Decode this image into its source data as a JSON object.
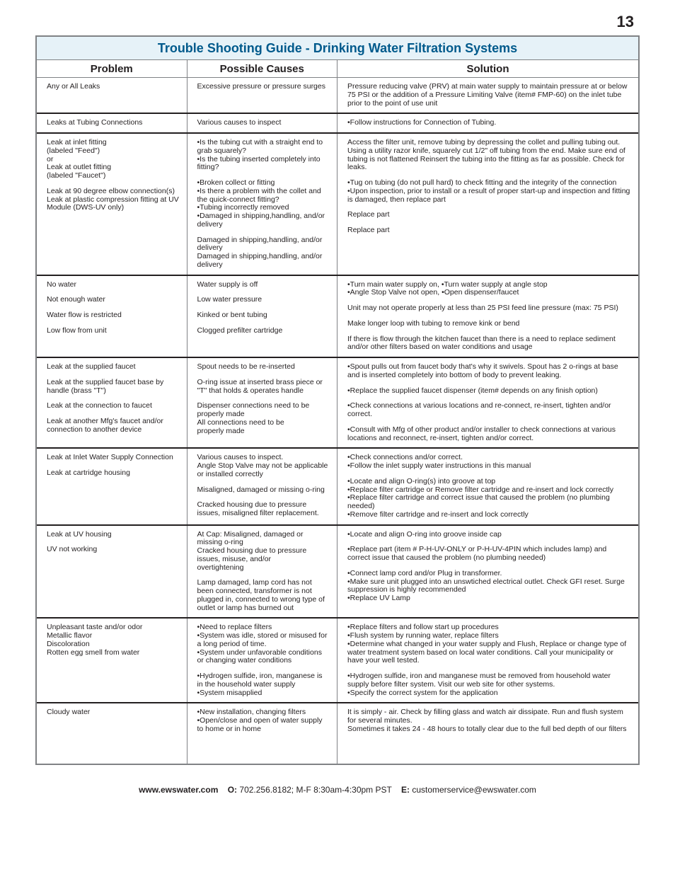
{
  "pageNumber": "13",
  "title": "Trouble Shooting Guide - Drinking Water Filtration Systems",
  "headers": {
    "problem": "Problem",
    "causes": "Possible Causes",
    "solution": "Solution"
  },
  "rows": [
    {
      "problem": [
        {
          "t": "Any or All Leaks"
        }
      ],
      "causes": [
        {
          "t": "Excessive pressure or pressure surges"
        }
      ],
      "solution": [
        {
          "t": "Pressure reducing valve (PRV) at main water supply to maintain pressure at or below 75 PSI or the addition of a Pressure Limiting Valve (item# FMP-60) on the inlet tube prior to the point of use unit"
        }
      ]
    },
    {
      "problem": [
        {
          "t": "Leaks at Tubing Connections"
        }
      ],
      "causes": [
        {
          "t": "Various causes to inspect"
        }
      ],
      "solution": [
        {
          "t": "•Follow instructions for Connection of Tubing."
        }
      ]
    },
    {
      "problem": [
        {
          "t": "Leak at inlet fitting\n(labeled \"Feed\")\nor\nLeak at outlet fitting\n(labeled \"Faucet\")",
          "blkAfter": true
        },
        {
          "t": "",
          "blkAfter": true
        },
        {
          "t": "",
          "blkAfter": true
        },
        {
          "t": "",
          "blkAfter": true
        },
        {
          "t": "Leak at 90 degree elbow connection(s)\nLeak at plastic compression fitting at UV Module (DWS-UV only)"
        }
      ],
      "causes": [
        {
          "t": "•Is the tubing cut with a straight end to grab squarely?\n•Is the tubing inserted completely into fitting?",
          "blkAfter": true
        },
        {
          "t": "•Broken collect or fitting\n•Is there a problem with the collet and the quick-connect fitting?\n•Tubing incorrectly removed\n•Damaged in shipping,handling, and/or delivery",
          "blkAfter": true
        },
        {
          "t": "Damaged in shipping,handling, and/or delivery\nDamaged in shipping,handling, and/or delivery"
        }
      ],
      "solution": [
        {
          "t": "Access the filter unit, remove tubing by depressing the collet and pulling tubing out. Using a utility razor knife, squarely cut 1/2\" off tubing from the end. Make sure end of tubing is not flattened Reinsert the tubing into the fitting as far as possible. Check for leaks.",
          "blkAfter": true
        },
        {
          "t": "•Tug on tubing (do not pull hard) to check fitting and the integrity of the connection\n•Upon inspection, prior to install or a result of proper start-up and inspection and fitting is damaged, then replace part",
          "blkAfter": true
        },
        {
          "t": "Replace part",
          "blkAfter": true
        },
        {
          "t": "Replace part"
        }
      ]
    },
    {
      "problem": [
        {
          "t": "No water",
          "blkAfter": true
        },
        {
          "t": "Not enough water",
          "blkAfter": true
        },
        {
          "t": "Water flow is restricted",
          "blkAfter": true
        },
        {
          "t": "Low flow from unit"
        }
      ],
      "causes": [
        {
          "t": "Water supply is off",
          "blkAfter": true
        },
        {
          "t": "Low water pressure",
          "blkAfter": true
        },
        {
          "t": "Kinked or bent tubing",
          "blkAfter": true
        },
        {
          "t": "Clogged prefilter cartridge"
        }
      ],
      "solution": [
        {
          "t": "•Turn main water supply on, •Turn water supply at angle stop\n•Angle Stop Valve not open, •Open dispenser/faucet",
          "blkAfter": true
        },
        {
          "t": "Unit may not operate properly at less than 25 PSI feed line pressure (max: 75 PSI)",
          "blkAfter": true
        },
        {
          "t": "Make longer loop with tubing to remove kink or bend",
          "blkAfter": true
        },
        {
          "t": "If there is flow through the kitchen faucet than there is a need to replace sediment and/or other filters based on water conditions and usage"
        }
      ]
    },
    {
      "problem": [
        {
          "t": "Leak at the supplied faucet",
          "blkAfter": true
        },
        {
          "t": "Leak at the supplied faucet base by handle (brass \"T\")",
          "blkAfter": true
        },
        {
          "t": "Leak at the connection to faucet",
          "blkAfter": true
        },
        {
          "t": "Leak at another Mfg's faucet and/or connection to another device"
        }
      ],
      "causes": [
        {
          "t": "Spout needs to be re-inserted",
          "blkAfter": true
        },
        {
          "t": "O-ring issue at inserted brass piece or \"T\" that holds &  operates handle",
          "blkAfter": true
        },
        {
          "t": "Dispenser connections need to be properly made"
        },
        {
          "t": "All connections need to be\nproperly made"
        }
      ],
      "solution": [
        {
          "t": "•Spout pulls out from faucet body that's why it swivels. Spout has 2 o-rings at base and is inserted completely into bottom of body to prevent leaking.",
          "blkAfter": true
        },
        {
          "t": "•Replace the supplied faucet dispenser  (item# depends on any finish option)",
          "blkAfter": true
        },
        {
          "t": "•Check connections at various locations and re-connect, re-insert, tighten and/or correct.",
          "blkAfter": true
        },
        {
          "t": "•Consult with Mfg of other product and/or installer  to check connections at various locations and reconnect, re-insert, tighten and/or correct."
        }
      ]
    },
    {
      "problem": [
        {
          "t": "Leak at Inlet Water Supply Connection",
          "blkAfter": true
        },
        {
          "t": "",
          "blkAfter": true
        },
        {
          "t": "Leak at cartridge housing"
        }
      ],
      "causes": [
        {
          "t": "Various causes to inspect.\nAngle Stop Valve may not be applicable or installed correctly",
          "blkAfter": true
        },
        {
          "t": "Misaligned, damaged or missing o-ring",
          "blkAfter": true
        },
        {
          "t": "Cracked housing due to pressure issues, misaligned filter replacement."
        }
      ],
      "solution": [
        {
          "t": "•Check connections and/or correct.\n•Follow the inlet supply water instructions in this manual",
          "blkAfter": true
        },
        {
          "t": "•Locate and align O-ring(s) into groove at top\n•Replace filter cartridge or  Remove filter cartridge and re-insert and lock correctly\n•Replace filter cartridge and correct issue that caused the problem (no plumbing needed)\n•Remove filter cartridge and re-insert and lock correctly"
        }
      ]
    },
    {
      "problem": [
        {
          "t": "Leak at UV housing",
          "blkAfter": true
        },
        {
          "t": "",
          "blkAfter": true
        },
        {
          "t": "",
          "blkAfter": true
        },
        {
          "t": "UV not working"
        }
      ],
      "causes": [
        {
          "t": "At Cap: Misaligned, damaged or missing o-ring\nCracked housing due to pressure issues, misuse, and/or\novertightening",
          "blkAfter": true
        },
        {
          "t": "Lamp damaged, lamp cord has not been connected, transformer is not plugged in, connected to wrong type of outlet or lamp has burned out"
        }
      ],
      "solution": [
        {
          "t": "•Locate and align O-ring into groove inside cap",
          "blkAfter": true
        },
        {
          "t": "•Replace part (item # P-H-UV-ONLY or P-H-UV-4PIN which includes lamp) and correct issue that caused the problem (no plumbing needed)",
          "blkAfter": true
        },
        {
          "t": "•Connect lamp cord and/or Plug in transformer.\n•Make sure unit plugged into an unswtiched electrical outlet. Check GFI reset. Surge suppression is highly recommended\n•Replace UV Lamp"
        }
      ]
    },
    {
      "problem": [
        {
          "t": "Unpleasant taste and/or odor\nMetallic flavor\nDiscoloration\nRotten egg smell from water"
        }
      ],
      "causes": [
        {
          "t": "•Need to replace filters\n•System was idle, stored or misused for a long period of time.\n•System under unfavorable conditions or changing water conditions",
          "blkAfter": true
        },
        {
          "t": "•Hydrogen sulfide, iron, manganese is in the household water supply\n•System misapplied"
        }
      ],
      "solution": [
        {
          "t": "•Replace filters and follow start up procedures\n•Flush system by running water, replace filters\n•Determine what changed in your water supply and Flush, Replace or change type of water treatment system based on local water conditions. Call your municipality or have your well tested.",
          "blkAfter": true
        },
        {
          "t": "•Hydrogen sulfide, iron and manganese must be removed from household water supply before filter system. Visit our web site for other systems.\n•Specify the correct system for the application"
        }
      ]
    },
    {
      "problem": [
        {
          "t": "Cloudy water"
        }
      ],
      "causes": [
        {
          "t": "•New installation, changing filters\n•Open/close and open of water supply to home or in home"
        }
      ],
      "solution": [
        {
          "t": "It is simply - air. Check by filling glass and watch air dissipate. Run and flush system for several minutes.\nSometimes it takes 24 - 48 hours to totally clear due to the full bed depth of our filters\n\n\n\n"
        }
      ]
    }
  ],
  "footer": {
    "url": "www.ewswater.com",
    "oLabel": "O:",
    "phone": "702.256.8182; M-F 8:30am-4:30pm PST",
    "eLabel": "E:",
    "email": "customerservice@ewswater.com"
  }
}
